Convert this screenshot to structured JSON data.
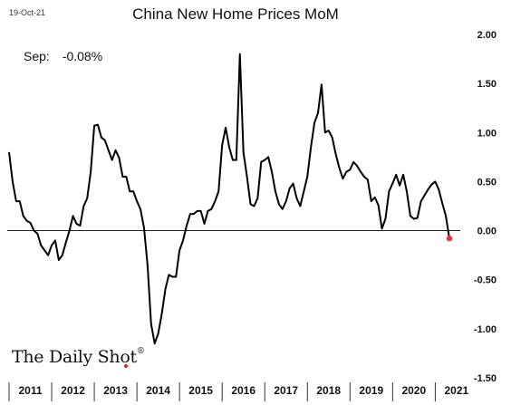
{
  "header": {
    "date_stamp": "19-Oct-21",
    "title": "China New Home Prices MoM"
  },
  "annotation": {
    "label": "Sep:",
    "value": "-0.08%"
  },
  "brand": {
    "name": "The Daily Shot",
    "mark": "®"
  },
  "colors": {
    "line": "#000000",
    "marker": "#e8323c",
    "zero_line": "#000000"
  },
  "chart_data": {
    "type": "line",
    "title": "China New Home Prices MoM",
    "xlabel": "",
    "ylabel": "",
    "ylim": [
      -1.5,
      2.0
    ],
    "y_ticks": [
      "2.00",
      "1.50",
      "1.00",
      "0.50",
      "0.00",
      "-0.50",
      "-1.00",
      "-1.50"
    ],
    "y_tick_values": [
      2.0,
      1.5,
      1.0,
      0.5,
      0.0,
      -0.5,
      -1.0,
      -1.5
    ],
    "x_tick_labels": [
      "2011",
      "2012",
      "2013",
      "2014",
      "2015",
      "2016",
      "2017",
      "2018",
      "2019",
      "2020",
      "2021"
    ],
    "x_start_year": 2011,
    "grid": false,
    "y_axis_position": "right",
    "series": [
      {
        "values": [
          0.8,
          0.5,
          0.3,
          0.3,
          0.15,
          0.1,
          0.08,
          0.0,
          -0.03,
          -0.15,
          -0.2,
          -0.25,
          -0.15,
          -0.1,
          -0.3,
          -0.25,
          -0.12,
          0.0,
          0.15,
          0.07,
          0.05,
          0.25,
          0.33,
          0.6,
          1.07,
          1.08,
          0.95,
          0.92,
          0.82,
          0.72,
          0.82,
          0.74,
          0.55,
          0.55,
          0.4,
          0.4,
          0.3,
          0.22,
          0.03,
          -0.35,
          -0.95,
          -1.15,
          -1.05,
          -0.85,
          -0.6,
          -0.45,
          -0.47,
          -0.47,
          -0.2,
          -0.1,
          0.05,
          0.17,
          0.17,
          0.2,
          0.2,
          0.07,
          0.2,
          0.22,
          0.3,
          0.4,
          0.87,
          1.05,
          0.85,
          0.72,
          0.72,
          1.8,
          0.8,
          0.55,
          0.27,
          0.25,
          0.33,
          0.7,
          0.72,
          0.75,
          0.6,
          0.4,
          0.27,
          0.22,
          0.3,
          0.43,
          0.48,
          0.33,
          0.25,
          0.4,
          0.55,
          0.85,
          1.1,
          1.2,
          1.49,
          1.0,
          1.02,
          0.95,
          0.78,
          0.64,
          0.53,
          0.6,
          0.62,
          0.7,
          0.66,
          0.6,
          0.55,
          0.52,
          0.3,
          0.34,
          0.26,
          0.02,
          0.12,
          0.4,
          0.48,
          0.57,
          0.46,
          0.57,
          0.4,
          0.15,
          0.12,
          0.13,
          0.3,
          0.36,
          0.42,
          0.47,
          0.5,
          0.42,
          0.28,
          0.15,
          -0.08
        ]
      }
    ],
    "last_value": -0.08
  }
}
